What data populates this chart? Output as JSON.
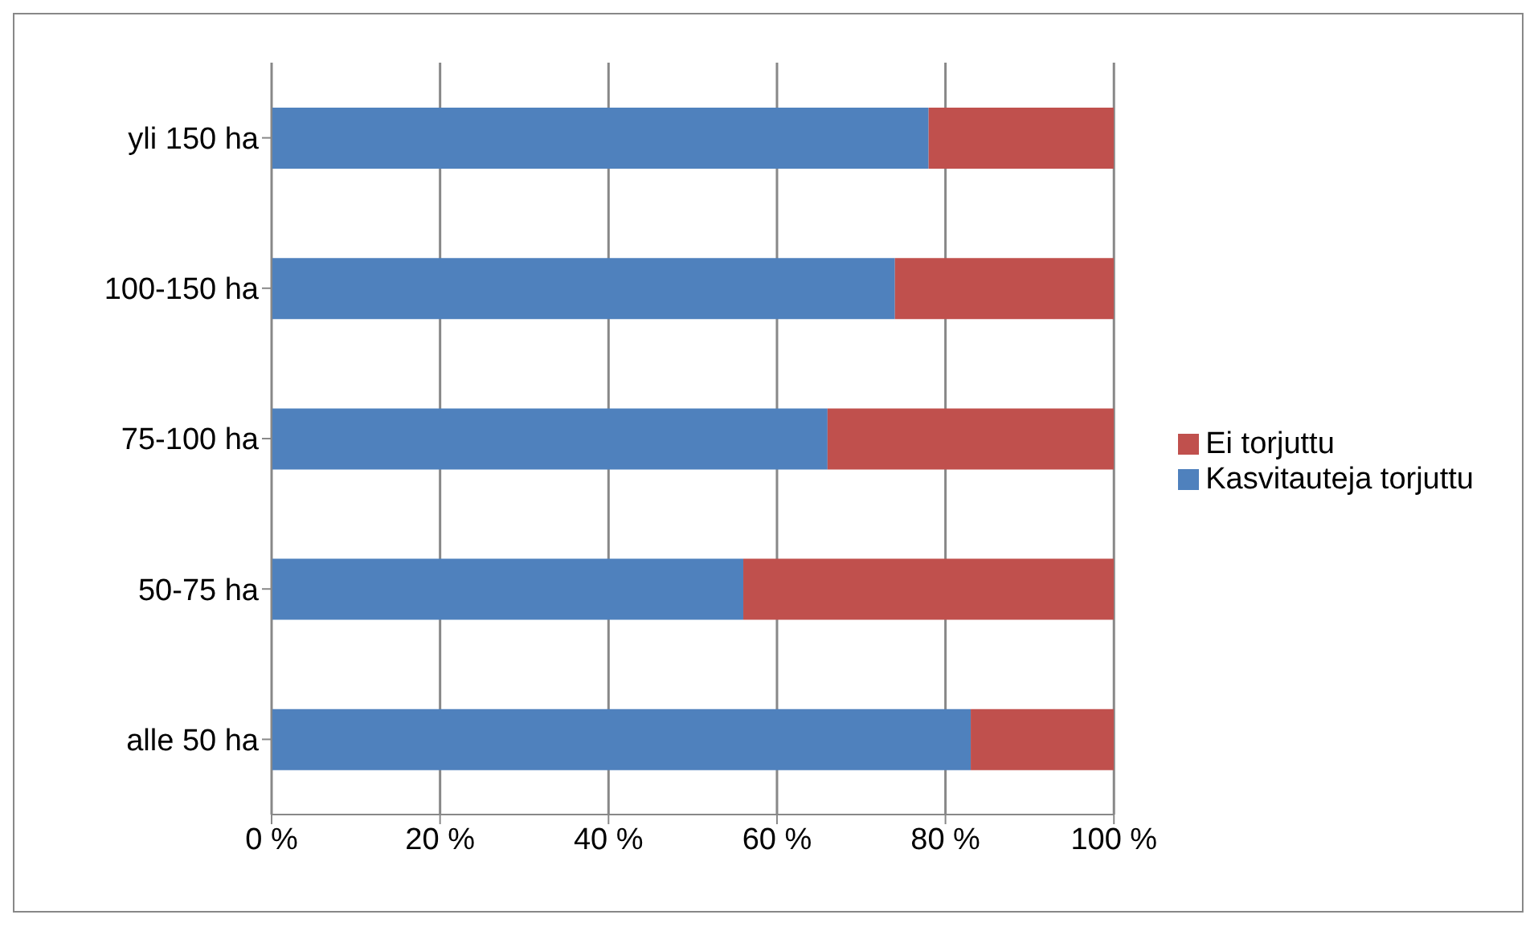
{
  "chart_data": {
    "type": "bar",
    "orientation": "horizontal",
    "stacked": true,
    "categories": [
      "yli 150 ha",
      "100-150 ha",
      "75-100 ha",
      "50-75 ha",
      "alle 50 ha"
    ],
    "series": [
      {
        "name": "Kasvitauteja torjuttu",
        "color": "#4f81bd",
        "values": [
          78,
          74,
          66,
          56,
          83
        ]
      },
      {
        "name": "Ei torjuttu",
        "color": "#c0504d",
        "values": [
          22,
          26,
          34,
          44,
          17
        ]
      }
    ],
    "xlim": [
      0,
      100
    ],
    "xticks": [
      {
        "value": 0,
        "label": "0 %"
      },
      {
        "value": 20,
        "label": "20 %"
      },
      {
        "value": 40,
        "label": "40 %"
      },
      {
        "value": 60,
        "label": "60 %"
      },
      {
        "value": 80,
        "label": "80 %"
      },
      {
        "value": 100,
        "label": "100 %"
      }
    ],
    "grid": "x",
    "legend": "right"
  }
}
